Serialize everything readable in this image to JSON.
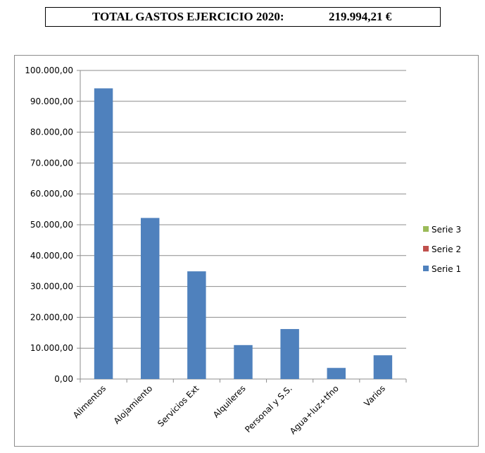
{
  "header": {
    "label": "TOTAL GASTOS EJERCICIO  2020:",
    "value": "219.994,21 €"
  },
  "chart_data": {
    "type": "bar",
    "title": "",
    "xlabel": "",
    "ylabel": "",
    "categories": [
      "Alimentos",
      "Alojamiento",
      "Servicios Ext",
      "Alquileres",
      "Personal y S.S.",
      "Agua+luz+tfno",
      "Varios"
    ],
    "series": [
      {
        "name": "Serie 1",
        "values": [
          94200,
          52200,
          34900,
          11000,
          16200,
          3600,
          7700
        ],
        "color": "#4f81bd"
      },
      {
        "name": "Serie 2",
        "values": [
          0,
          0,
          0,
          0,
          0,
          0,
          0
        ],
        "color": "#c0504d"
      },
      {
        "name": "Serie 3",
        "values": [
          0,
          0,
          0,
          0,
          0,
          0,
          0
        ],
        "color": "#9bbb59"
      }
    ],
    "ylim": [
      0,
      100000
    ],
    "yticks": [
      "0,00",
      "10.000,00",
      "20.000,00",
      "30.000,00",
      "40.000,00",
      "50.000,00",
      "60.000,00",
      "70.000,00",
      "80.000,00",
      "90.000,00",
      "100.000,00"
    ],
    "grid": true,
    "legend_position": "right",
    "legend_order": [
      "Serie 3",
      "Serie 2",
      "Serie 1"
    ]
  }
}
